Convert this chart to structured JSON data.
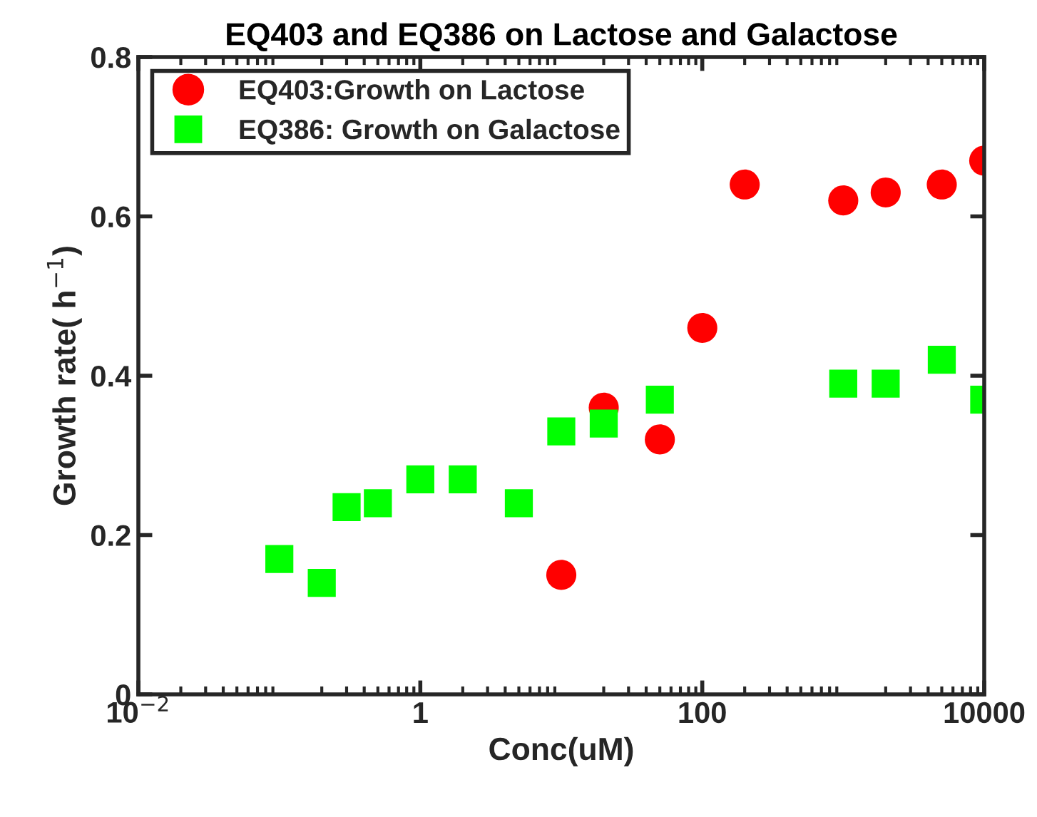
{
  "chart_data": {
    "type": "scatter",
    "title": "EQ403 and EQ386 on Lactose and Galactose",
    "xlabel": "Conc(uM)",
    "ylabel": "Growth rate( h$^{−1}$)",
    "log": "x",
    "xlim": [
      0.01,
      10000
    ],
    "xticks": [
      {
        "value": 0.01,
        "label": "10$^{−2}$"
      },
      1,
      100,
      10000
    ],
    "ylim": [
      0,
      0.8
    ],
    "yticks": [
      0,
      0.2,
      0.4,
      0.6,
      0.8
    ],
    "grid": false,
    "legend": "top left",
    "series": [
      {
        "name": "EQ403:Growth on Lactose",
        "color": "#ff0000",
        "marker": "circle",
        "x": [
          10,
          20,
          50,
          100,
          200,
          1000,
          2000,
          5000,
          10000
        ],
        "values": [
          0.15,
          0.36,
          0.32,
          0.46,
          0.64,
          0.62,
          0.63,
          0.64,
          0.67
        ]
      },
      {
        "name": "EQ386: Growth on Galactose",
        "color": "#00ff00",
        "marker": "square",
        "x": [
          0.1,
          0.2,
          0.3,
          0.5,
          1,
          2,
          5,
          10,
          20,
          50,
          1000,
          2000,
          5000,
          10000
        ],
        "values": [
          0.17,
          0.14,
          0.235,
          0.24,
          0.27,
          0.27,
          0.24,
          0.33,
          0.34,
          0.37,
          0.39,
          0.39,
          0.42,
          0.37
        ]
      }
    ]
  }
}
